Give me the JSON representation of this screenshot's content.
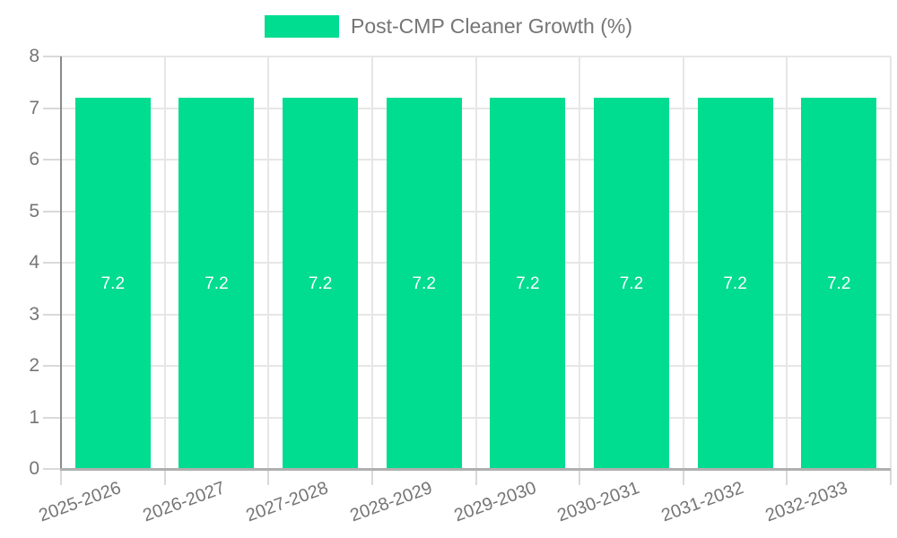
{
  "legend": {
    "label": "Post-CMP Cleaner Growth (%)"
  },
  "chart_data": {
    "type": "bar",
    "title": "Post-CMP Cleaner Growth (%)",
    "categories": [
      "2025-2026",
      "2026-2027",
      "2027-2028",
      "2028-2029",
      "2029-2030",
      "2030-2031",
      "2031-2032",
      "2032-2033"
    ],
    "series": [
      {
        "name": "Post-CMP Cleaner Growth (%)",
        "values": [
          7.2,
          7.2,
          7.2,
          7.2,
          7.2,
          7.2,
          7.2,
          7.2
        ]
      }
    ],
    "bar_value_labels": [
      "7.2",
      "7.2",
      "7.2",
      "7.2",
      "7.2",
      "7.2",
      "7.2",
      "7.2"
    ],
    "xlabel": "",
    "ylabel": "",
    "ylim": [
      0,
      8
    ],
    "yticks": [
      0,
      1,
      2,
      3,
      4,
      5,
      6,
      7,
      8
    ],
    "grid": true,
    "legend_position": "top",
    "x_label_rotation_deg": -20,
    "colors": {
      "bar": "#00DC90",
      "axis_text": "#757575",
      "grid_line": "#e6e6e6",
      "tick_line": "#d9d9d9",
      "y_axis_line": "#8a8a8a",
      "baseline": "#b0b0b0",
      "value_label_text": "#ffffff",
      "background": "#ffffff"
    }
  }
}
